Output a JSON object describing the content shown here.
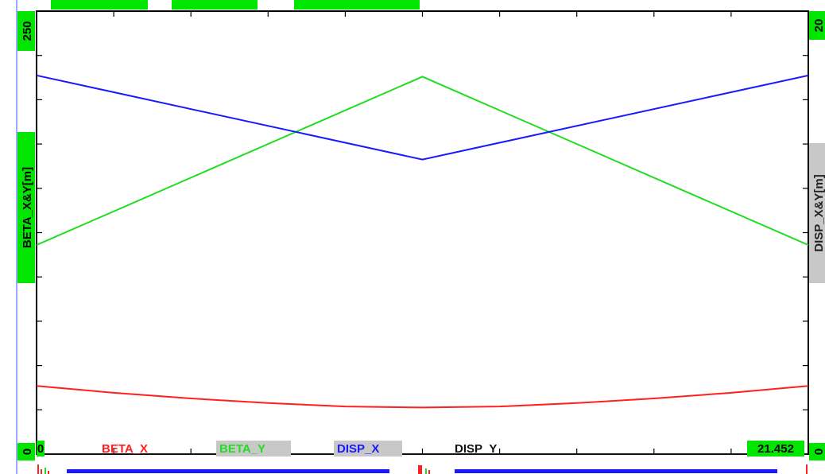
{
  "chart_data": {
    "type": "line",
    "title": "",
    "left_axis": {
      "label": "BETA_X&Y[m]",
      "max_label": "250",
      "min_label": "0",
      "ylim": [
        0,
        250
      ]
    },
    "right_axis": {
      "label": "DISP_X&Y[m]",
      "max_label": "20",
      "min_label": "0",
      "ylim": [
        0,
        20
      ]
    },
    "x_axis": {
      "min_label": "0",
      "max_label": "21.452",
      "xlim": [
        0,
        21.452
      ]
    },
    "legend": [
      {
        "name": "BETA_X",
        "color": "#ff2020"
      },
      {
        "name": "BETA_Y",
        "color": "#22dd22"
      },
      {
        "name": "DISP_X",
        "color": "#1a1aff"
      },
      {
        "name": "DISP_Y",
        "color": "#111111"
      }
    ],
    "series": [
      {
        "name": "BETA_X",
        "axis": "left",
        "color": "#ff2020",
        "x": [
          0,
          2.145,
          4.29,
          6.436,
          8.581,
          10.726,
          12.871,
          15.016,
          17.162,
          19.307,
          21.452
        ],
        "y": [
          38.5,
          34.6,
          31.4,
          28.8,
          26.9,
          26.3,
          26.9,
          28.8,
          31.4,
          34.6,
          38.5
        ]
      },
      {
        "name": "BETA_Y",
        "axis": "left",
        "color": "#22dd22",
        "x": [
          0,
          10.726,
          21.452
        ],
        "y": [
          118,
          213,
          118
        ]
      },
      {
        "name": "DISP_X",
        "axis": "right",
        "color": "#1a1aff",
        "x": [
          0,
          10.726,
          21.452
        ],
        "y": [
          17.1,
          13.3,
          17.1
        ]
      },
      {
        "name": "DISP_Y",
        "axis": "right",
        "color": "#111111",
        "x": [
          0,
          21.452
        ],
        "y": [
          0,
          0
        ]
      }
    ],
    "grid": false
  }
}
